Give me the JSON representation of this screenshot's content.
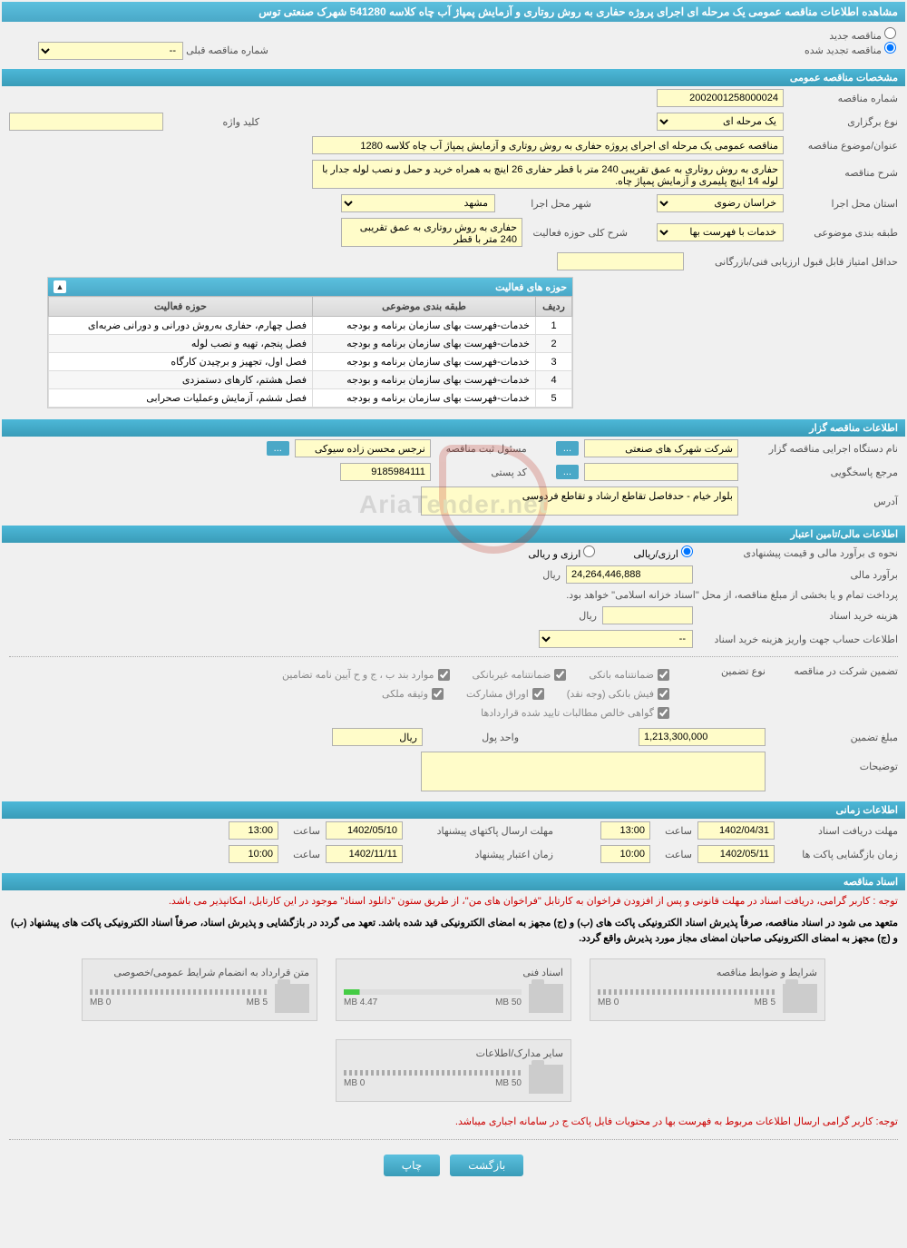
{
  "header": {
    "title": "مشاهده اطلاعات مناقصه عمومی یک مرحله ای اجرای پروژه حفاری به روش روتاری و آزمایش پمپاژ آب چاه کلاسه 541280 شهرک صنعتی توس"
  },
  "tender_type": {
    "new_label": "مناقصه جدید",
    "renewed_label": "مناقصه تجدید شده",
    "prev_number_label": "شماره مناقصه قبلی",
    "prev_number_placeholder": "--"
  },
  "sections": {
    "general": "مشخصات مناقصه عمومی",
    "activity_areas": "حوزه های فعالیت",
    "organizer": "اطلاعات مناقصه گزار",
    "financial": "اطلاعات مالی/تامین اعتبار",
    "timing": "اطلاعات زمانی",
    "documents": "اسناد مناقصه"
  },
  "general": {
    "tender_no_label": "شماره مناقصه",
    "tender_no": "2002001258000024",
    "holding_type_label": "نوع برگزاری",
    "holding_type": "یک مرحله ای",
    "keyword_label": "کلید واژه",
    "keyword": "",
    "subject_label": "عنوان/موضوع مناقصه",
    "subject": "مناقصه عمومی یک مرحله ای اجرای پروژه حفاری به روش روتاری و آزمایش پمپاژ آب چاه کلاسه 1280",
    "description_label": "شرح مناقصه",
    "description": "حفاری به روش روتاری به عمق تقریبی 240 متر با قطر حفاری 26 اینچ به همراه خرید و حمل و نصب لوله جدار با لوله 14 اینچ پلیمری و آزمایش پمپاژ چاه.",
    "province_label": "استان محل اجرا",
    "province": "خراسان رضوی",
    "city_label": "شهر محل اجرا",
    "city": "مشهد",
    "category_label": "طبقه بندی موضوعی",
    "category": "خدمات با فهرست بها",
    "activity_desc_label": "شرح کلی حوزه فعالیت",
    "activity_desc": "حفاری به روش روتاری به عمق تقریبی 240 متر با قطر",
    "min_score_label": "حداقل امتیاز قابل قبول ارزیابی فنی/بازرگانی",
    "min_score": ""
  },
  "activity_table": {
    "col_row": "ردیف",
    "col_category": "طبقه بندی موضوعی",
    "col_area": "حوزه فعالیت",
    "rows": [
      {
        "n": "1",
        "cat": "خدمات-فهرست بهای سازمان برنامه و بودجه",
        "area": "فصل چهارم، حفاری به‌روش دورانی و دورانی ضربه‌ای"
      },
      {
        "n": "2",
        "cat": "خدمات-فهرست بهای سازمان برنامه و بودجه",
        "area": "فصل پنجم، تهیه و نصب لوله"
      },
      {
        "n": "3",
        "cat": "خدمات-فهرست بهای سازمان برنامه و بودجه",
        "area": "فصل اول، تجهیز و برچیدن کارگاه"
      },
      {
        "n": "4",
        "cat": "خدمات-فهرست بهای سازمان برنامه و بودجه",
        "area": "فصل هشتم، کارهای دستمزدی"
      },
      {
        "n": "5",
        "cat": "خدمات-فهرست بهای سازمان برنامه و بودجه",
        "area": "فصل ششم، آزمایش وعملیات صحرابی"
      }
    ]
  },
  "organizer": {
    "name_label": "نام دستگاه اجرایی مناقصه گزار",
    "name": "شرکت شهرک های صنعتی",
    "registrar_label": "مسئول ثبت مناقصه",
    "registrar": "نرجس محسن زاده سیوکی",
    "responder_label": "مرجع پاسخگویی",
    "responder": "",
    "postal_label": "کد پستی",
    "postal": "9185984111",
    "address_label": "آدرس",
    "address": "بلوار خیام - حدفاصل تقاطع ارشاد و تقاطع فردوسی"
  },
  "financial": {
    "method_label": "نحوه ی برآورد مالی و قیمت پیشنهادی",
    "method_currency": "ارزی/ریالی",
    "method_both": "ارزی و ریالی",
    "estimate_label": "برآورد مالی",
    "estimate": "24,264,446,888",
    "unit_rial": "ریال",
    "payment_note": "پرداخت تمام و یا بخشی از مبلغ مناقصه، از محل \"اسناد خزانه اسلامی\" خواهد بود.",
    "doc_cost_label": "هزینه خرید اسناد",
    "doc_cost": "",
    "account_label": "اطلاعات حساب جهت واریز هزینه خرید اسناد",
    "account_placeholder": "--",
    "guarantee_label": "تضمین شرکت در مناقصه",
    "guarantee_type_label": "نوع تضمین",
    "chk_bank_guarantee": "ضمانتنامه بانکی",
    "chk_nonbank_guarantee": "ضمانتنامه غیربانکی",
    "chk_items_abc": "موارد بند ب ، ج و ح آیین نامه تضامین",
    "chk_bank_receipt": "فیش بانکی (وجه نقد)",
    "chk_securities": "اوراق مشارکت",
    "chk_property": "وثیقه ملکی",
    "chk_certified": "گواهی خالص مطالبات تایید شده قراردادها",
    "guarantee_amount_label": "مبلغ تضمین",
    "guarantee_amount": "1,213,300,000",
    "unit_label": "واحد پول",
    "unit_value": "ریال",
    "notes_label": "توضیحات"
  },
  "timing": {
    "doc_deadline_label": "مهلت دریافت اسناد",
    "doc_deadline_date": "1402/04/31",
    "doc_deadline_time": "13:00",
    "proposal_deadline_label": "مهلت ارسال پاکتهای پیشنهاد",
    "proposal_deadline_date": "1402/05/10",
    "proposal_deadline_time": "13:00",
    "opening_label": "زمان بازگشایی پاکت ها",
    "opening_date": "1402/05/11",
    "opening_time": "10:00",
    "validity_label": "زمان اعتبار پیشنهاد",
    "validity_date": "1402/11/11",
    "validity_time": "10:00",
    "time_label": "ساعت"
  },
  "documents": {
    "notice1": "توجه : کاربر گرامی، دریافت اسناد در مهلت قانونی و پس از افزودن فراخوان به کارتابل \"فراخوان های من\"، از طریق ستون \"دانلود اسناد\" موجود در این کارتابل، امکانپذیر می باشد.",
    "notice2": "متعهد می شود در اسناد مناقصه، صرفاً پذیرش اسناد الکترونیکی پاکت های (ب) و (ج) مجهز به امضای الکترونیکی قید شده باشد. تعهد می گردد در بازگشایی و پذیرش اسناد، صرفاً اسناد الکترونیکی پاکت های پیشنهاد (ب) و (ج) مجهز به امضای الکترونیکی صاحبان امضای مجاز مورد پذیرش واقع گردد.",
    "notice3": "توجه: کاربر گرامی ارسال اطلاعات مربوط به فهرست بها در محتویات فایل پاکت ج در سامانه اجباری میباشد.",
    "files": [
      {
        "title": "شرایط و ضوابط مناقصه",
        "used": "0 MB",
        "total": "5 MB",
        "pct": 0
      },
      {
        "title": "اسناد فنی",
        "used": "4.47 MB",
        "total": "50 MB",
        "pct": 9
      },
      {
        "title": "متن قرارداد به انضمام شرایط عمومی/خصوصی",
        "used": "0 MB",
        "total": "5 MB",
        "pct": 0
      },
      {
        "title": "سایر مدارک/اطلاعات",
        "used": "0 MB",
        "total": "50 MB",
        "pct": 0
      }
    ]
  },
  "buttons": {
    "back": "بازگشت",
    "print": "چاپ",
    "more": "..."
  },
  "colors": {
    "header_bg": "#4db8d8",
    "input_bg": "#fffcc9",
    "accent": "#4aa8c7",
    "red": "#c00"
  }
}
